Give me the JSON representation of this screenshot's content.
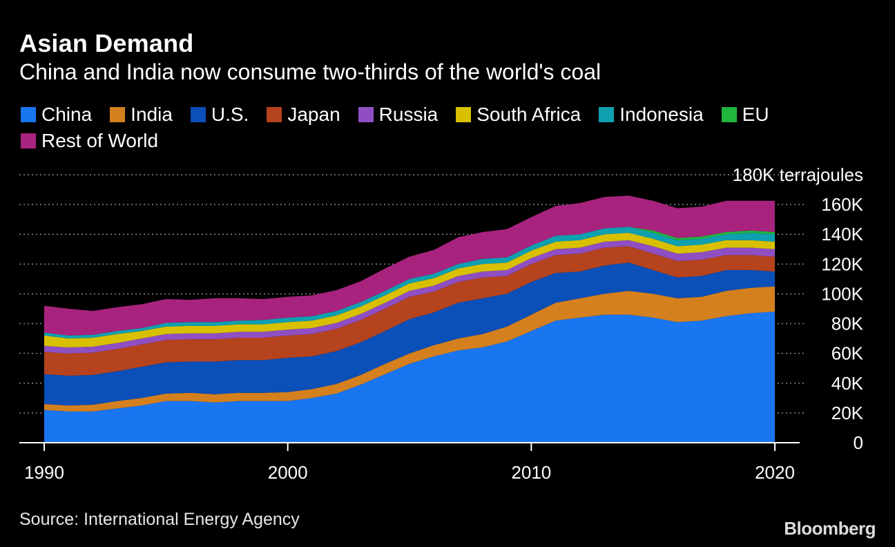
{
  "header": {
    "title": "Asian Demand",
    "subtitle": "China and India now consume two-thirds of the world's coal"
  },
  "footer": {
    "source": "Source: International Energy Agency",
    "brand": "Bloomberg"
  },
  "chart_data": {
    "type": "area",
    "stacked": true,
    "title": "Asian Demand",
    "subtitle": "China and India now consume two-thirds of the world's coal",
    "unit_label": "180K terrajoules",
    "ylim": [
      0,
      180000
    ],
    "y_ticks": [
      0,
      20000,
      40000,
      60000,
      80000,
      100000,
      120000,
      140000,
      160000,
      180000
    ],
    "y_tick_labels": [
      "0",
      "20K",
      "40K",
      "60K",
      "80K",
      "100K",
      "120K",
      "140K",
      "160K",
      "180K terrajoules"
    ],
    "x_ticks": [
      1990,
      2000,
      2010,
      2020
    ],
    "x_tick_labels": [
      "1990",
      "2000",
      "2010",
      "2020"
    ],
    "grid": true,
    "legend_position": "top",
    "x": [
      1990,
      1991,
      1992,
      1993,
      1994,
      1995,
      1996,
      1997,
      1998,
      1999,
      2000,
      2001,
      2002,
      2003,
      2004,
      2005,
      2006,
      2007,
      2008,
      2009,
      2010,
      2011,
      2012,
      2013,
      2014,
      2015,
      2016,
      2017,
      2018,
      2019,
      2020
    ],
    "series": [
      {
        "name": "China",
        "color": "#1a75f0",
        "values": [
          22000,
          21000,
          21000,
          23000,
          25000,
          28000,
          28000,
          27000,
          28000,
          28000,
          28000,
          30000,
          33000,
          39000,
          46000,
          53000,
          58000,
          62000,
          64000,
          68000,
          75000,
          82000,
          84000,
          86000,
          86000,
          84000,
          81000,
          82000,
          85000,
          87000,
          88000
        ]
      },
      {
        "name": "India",
        "color": "#d4801f",
        "values": [
          4000,
          4000,
          4500,
          5000,
          5000,
          5000,
          5500,
          5500,
          5500,
          5500,
          6000,
          6000,
          6500,
          6500,
          7000,
          7000,
          7500,
          8000,
          9000,
          10000,
          11000,
          12000,
          13000,
          14000,
          16000,
          16000,
          16000,
          16000,
          17000,
          17000,
          17000
        ]
      },
      {
        "name": "U.S.",
        "color": "#0b4fb8",
        "values": [
          20000,
          20000,
          20000,
          20000,
          21000,
          21000,
          21000,
          22000,
          22000,
          22000,
          23000,
          22000,
          22000,
          22000,
          22000,
          23000,
          22000,
          24000,
          24000,
          22000,
          22000,
          20000,
          18000,
          19000,
          19000,
          16000,
          14000,
          14000,
          14000,
          12000,
          10000
        ]
      },
      {
        "name": "Japan",
        "color": "#b5431e",
        "values": [
          15000,
          15000,
          15000,
          15000,
          15000,
          15000,
          15000,
          15000,
          15000,
          15000,
          15000,
          15000,
          15000,
          15000,
          15000,
          15000,
          14000,
          14000,
          14000,
          12000,
          12000,
          12000,
          12000,
          12000,
          11000,
          11000,
          11000,
          11000,
          10000,
          10000,
          10000
        ]
      },
      {
        "name": "Russia",
        "color": "#8f4fc2",
        "values": [
          4000,
          4000,
          4000,
          4000,
          4000,
          4000,
          4000,
          4000,
          4000,
          4000,
          4000,
          4000,
          4000,
          4000,
          4000,
          4000,
          4000,
          4000,
          4000,
          4000,
          4000,
          4000,
          4000,
          4000,
          4000,
          5000,
          5000,
          5000,
          5000,
          5000,
          5000
        ]
      },
      {
        "name": "South Africa",
        "color": "#d8c000",
        "values": [
          7000,
          6000,
          6000,
          6000,
          5000,
          5000,
          5000,
          5000,
          5000,
          5000,
          5000,
          5000,
          5000,
          5000,
          5000,
          5000,
          5000,
          5000,
          5000,
          5000,
          5000,
          5000,
          5000,
          5000,
          5000,
          5000,
          5000,
          5000,
          5000,
          5000,
          5000
        ]
      },
      {
        "name": "Indonesia",
        "color": "#0fa0b0",
        "values": [
          2000,
          2000,
          2000,
          2000,
          2000,
          2500,
          2500,
          2500,
          2500,
          3000,
          3000,
          3000,
          3000,
          3000,
          3000,
          3000,
          3000,
          3000,
          3500,
          3500,
          3500,
          4000,
          4000,
          4000,
          4000,
          4000,
          4000,
          4000,
          4000,
          5000,
          5000
        ]
      },
      {
        "name": "EU",
        "color": "#21b53c",
        "values": [
          0,
          0,
          0,
          0,
          0,
          0,
          0,
          0,
          0,
          0,
          0,
          0,
          0,
          0,
          0,
          0,
          0,
          0,
          0,
          0,
          0,
          0,
          0,
          0,
          0,
          1500,
          1500,
          1500,
          1500,
          1500,
          1500
        ]
      },
      {
        "name": "Rest of World",
        "color": "#a8237e",
        "values": [
          18000,
          18000,
          16000,
          16000,
          16000,
          16000,
          15000,
          16000,
          15000,
          14000,
          14000,
          14000,
          14000,
          14000,
          15000,
          15000,
          16000,
          18000,
          18000,
          19000,
          19000,
          20000,
          21000,
          21000,
          21000,
          20000,
          20000,
          20000,
          21000,
          20000,
          21000
        ]
      }
    ]
  }
}
